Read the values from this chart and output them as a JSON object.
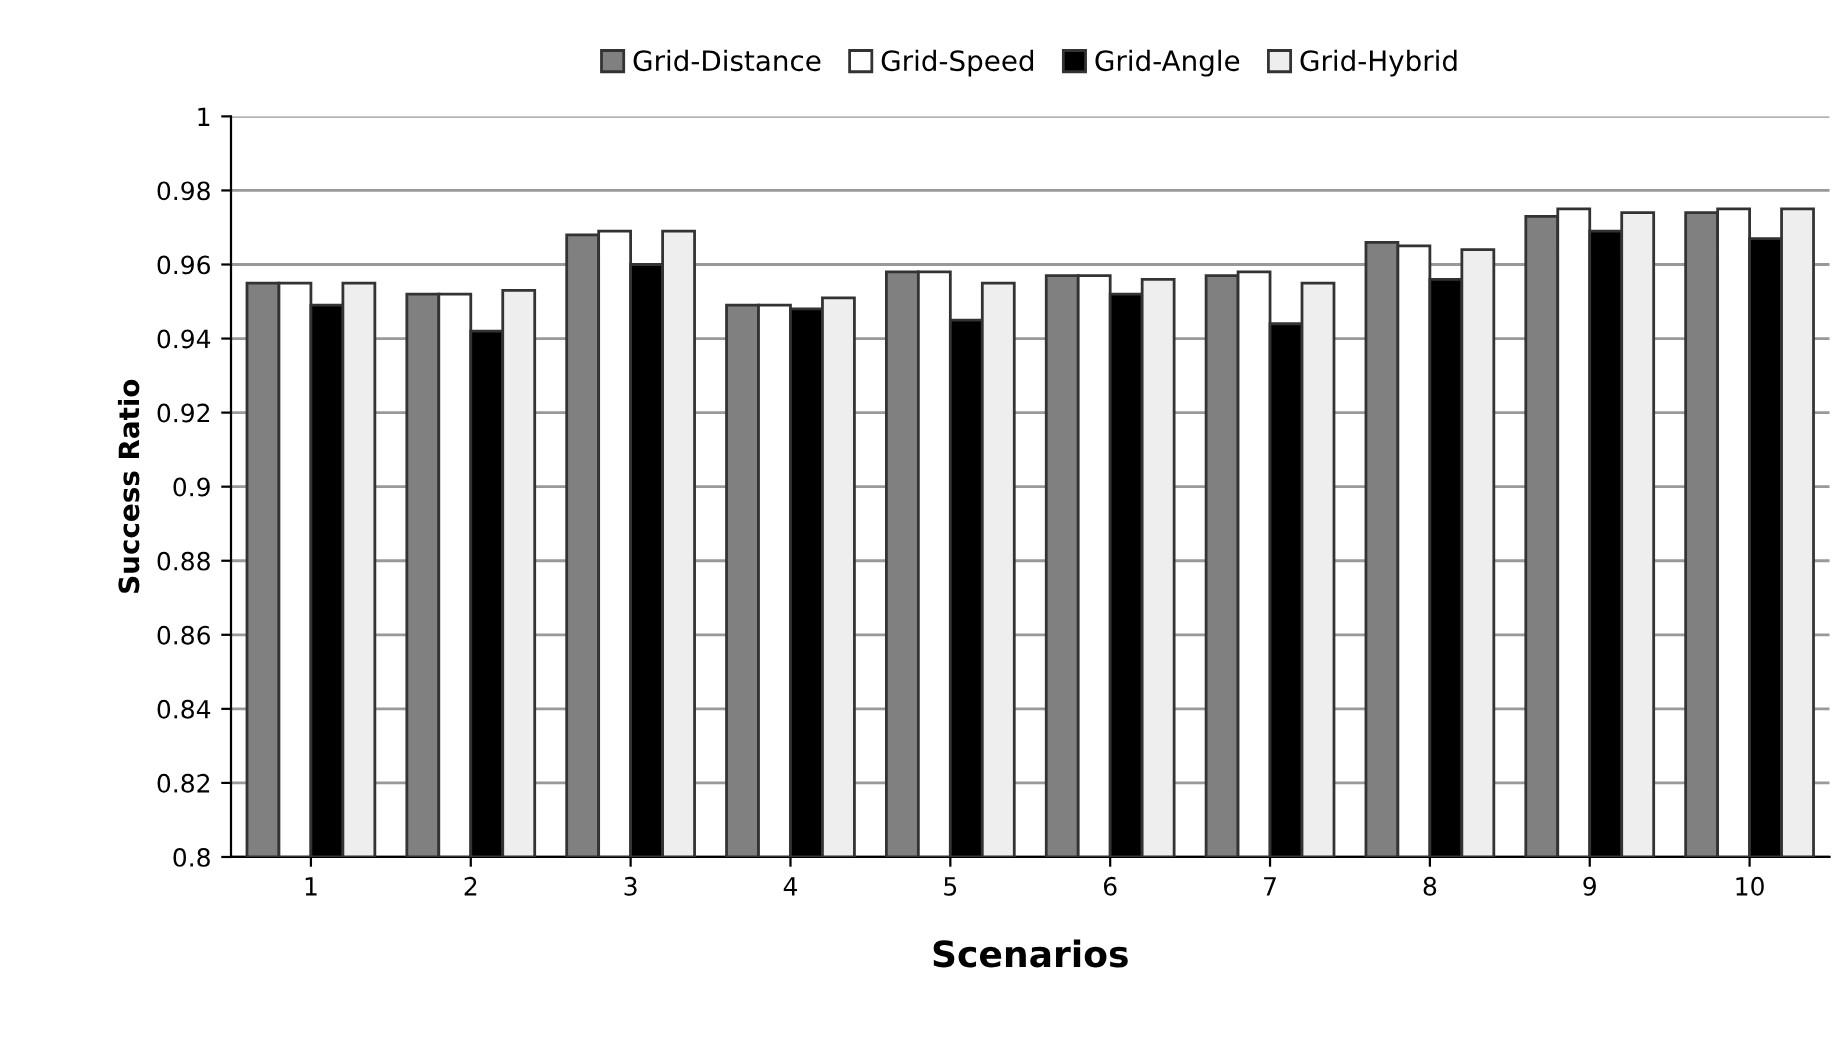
{
  "chart_data": {
    "type": "bar",
    "xlabel": "Scenarios",
    "ylabel": "Success Ratio",
    "categories": [
      "1",
      "2",
      "3",
      "4",
      "5",
      "6",
      "7",
      "8",
      "9",
      "10"
    ],
    "series": [
      {
        "name": "Grid-Distance",
        "color": "#808080",
        "values": [
          0.955,
          0.952,
          0.968,
          0.949,
          0.958,
          0.957,
          0.957,
          0.966,
          0.973,
          0.974
        ]
      },
      {
        "name": "Grid-Speed",
        "color": "#ffffff",
        "values": [
          0.955,
          0.952,
          0.969,
          0.949,
          0.958,
          0.957,
          0.958,
          0.965,
          0.975,
          0.975
        ]
      },
      {
        "name": "Grid-Angle",
        "color": "#000000",
        "values": [
          0.949,
          0.942,
          0.96,
          0.948,
          0.945,
          0.952,
          0.944,
          0.956,
          0.969,
          0.967
        ]
      },
      {
        "name": "Grid-Hybrid",
        "color": "#eeeeee",
        "values": [
          0.955,
          0.953,
          0.969,
          0.951,
          0.955,
          0.956,
          0.955,
          0.964,
          0.974,
          0.975
        ]
      }
    ],
    "ylim": [
      0.8,
      1
    ],
    "yticks": [
      0.8,
      0.82,
      0.84,
      0.86,
      0.88,
      0.9,
      0.92,
      0.94,
      0.96,
      0.98,
      1
    ],
    "grid": "y",
    "legend": "top"
  }
}
